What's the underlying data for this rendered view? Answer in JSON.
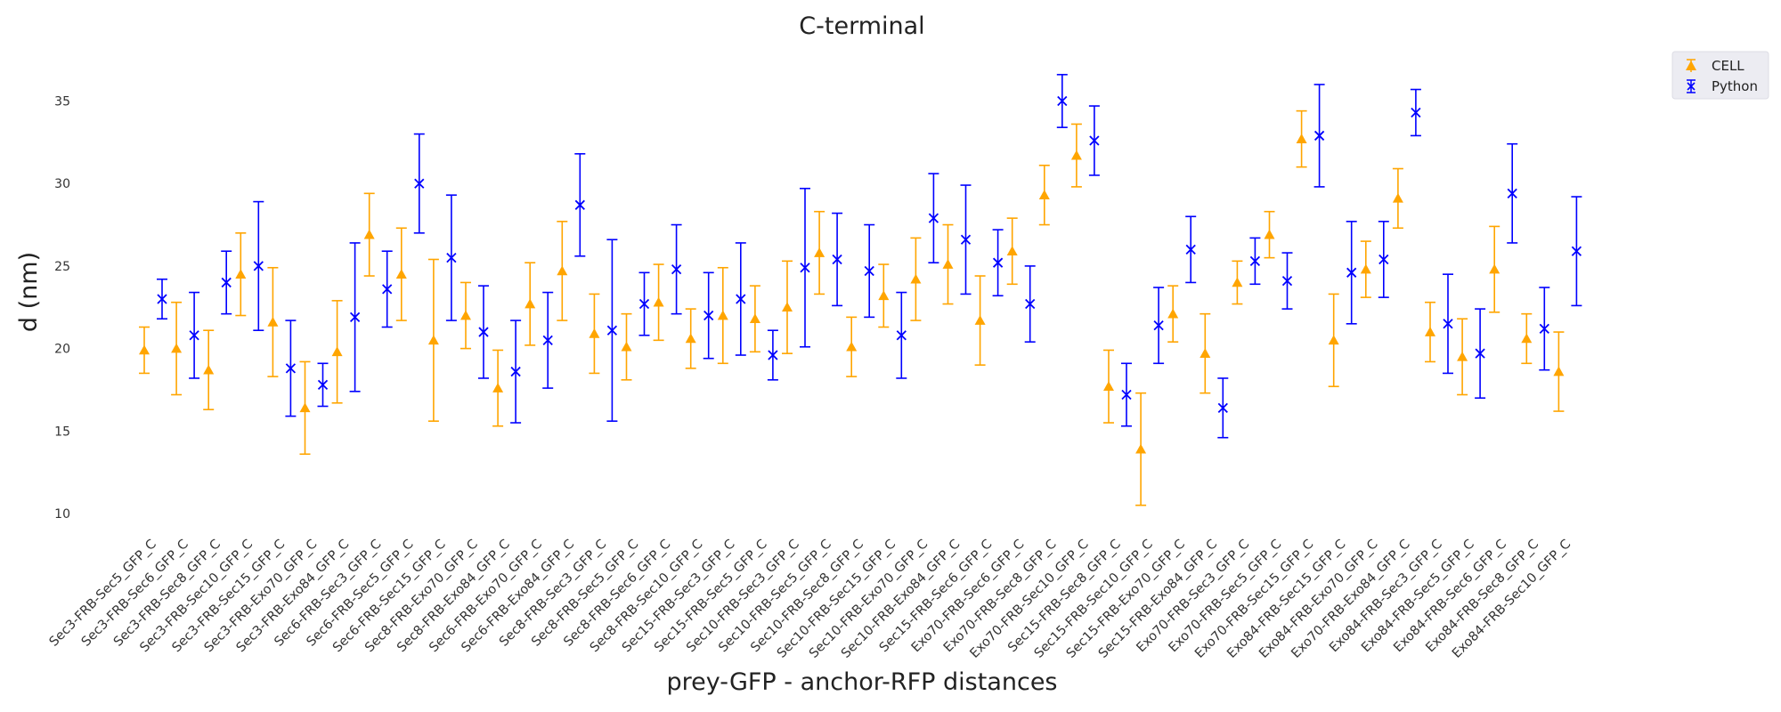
{
  "chart_data": {
    "type": "scatter",
    "title": "C-terminal",
    "xlabel": "prey-GFP - anchor-RFP distances",
    "ylabel": "d (nm)",
    "ylim": [
      9,
      38
    ],
    "yticks": [
      10,
      15,
      20,
      25,
      30,
      35
    ],
    "grid": false,
    "legend_position": "top-right",
    "colors": {
      "cell": "#FFA500",
      "python": "#0000FF"
    },
    "categories": [
      "Sec3-FRB-Sec5_GFP_C",
      "Sec3-FRB-Sec6_GFP_C",
      "Sec3-FRB-Sec8_GFP_C",
      "Sec3-FRB-Sec10_GFP_C",
      "Sec3-FRB-Sec15_GFP_C",
      "Sec3-FRB-Exo70_GFP_C",
      "Sec3-FRB-Exo84_GFP_C",
      "Sec6-FRB-Sec3_GFP_C",
      "Sec6-FRB-Sec5_GFP_C",
      "Sec6-FRB-Sec15_GFP_C",
      "Sec8-FRB-Exo70_GFP_C",
      "Sec8-FRB-Exo84_GFP_C",
      "Sec6-FRB-Exo70_GFP_C",
      "Sec6-FRB-Exo84_GFP_C",
      "Sec8-FRB-Sec3_GFP_C",
      "Sec8-FRB-Sec5_GFP_C",
      "Sec8-FRB-Sec6_GFP_C",
      "Sec8-FRB-Sec10_GFP_C",
      "Sec15-FRB-Sec3_GFP_C",
      "Sec15-FRB-Sec5_GFP_C",
      "Sec10-FRB-Sec3_GFP_C",
      "Sec10-FRB-Sec5_GFP_C",
      "Sec10-FRB-Sec8_GFP_C",
      "Sec10-FRB-Sec15_GFP_C",
      "Sec10-FRB-Exo70_GFP_C",
      "Sec10-FRB-Exo84_GFP_C",
      "Sec15-FRB-Sec6_GFP_C",
      "Exo70-FRB-Sec6_GFP_C",
      "Exo70-FRB-Sec8_GFP_C",
      "Exo70-FRB-Sec10_GFP_C",
      "Sec15-FRB-Sec8_GFP_C",
      "Sec15-FRB-Sec10_GFP_C",
      "Sec15-FRB-Exo70_GFP_C",
      "Sec15-FRB-Exo84_GFP_C",
      "Exo70-FRB-Sec3_GFP_C",
      "Exo70-FRB-Sec5_GFP_C",
      "Exo70-FRB-Sec15_GFP_C",
      "Exo84-FRB-Sec15_GFP_C",
      "Exo84-FRB-Exo70_GFP_C",
      "Exo70-FRB-Exo84_GFP_C",
      "Exo84-FRB-Sec3_GFP_C",
      "Exo84-FRB-Sec5_GFP_C",
      "Exo84-FRB-Sec6_GFP_C",
      "Exo84-FRB-Sec8_GFP_C",
      "Exo84-FRB-Sec10_GFP_C"
    ],
    "series": [
      {
        "name": "CELL",
        "marker": "triangle",
        "values": [
          19.9,
          20.0,
          18.7,
          24.5,
          21.6,
          16.4,
          19.8,
          26.9,
          24.5,
          20.5,
          22.0,
          17.6,
          22.7,
          24.7,
          20.9,
          20.1,
          22.8,
          20.6,
          22.0,
          21.8,
          22.5,
          25.8,
          20.1,
          23.2,
          24.2,
          25.1,
          21.7,
          25.9,
          29.3,
          31.7,
          17.7,
          13.9,
          22.1,
          19.7,
          24.0,
          26.9,
          32.7,
          20.5,
          24.8,
          29.1,
          21.0,
          19.5,
          24.8,
          20.6,
          18.6
        ],
        "errors": [
          1.4,
          2.8,
          2.4,
          2.5,
          3.3,
          2.8,
          3.1,
          2.5,
          2.8,
          4.9,
          2.0,
          2.3,
          2.5,
          3.0,
          2.4,
          2.0,
          2.3,
          1.8,
          2.9,
          2.0,
          2.8,
          2.5,
          1.8,
          1.9,
          2.5,
          2.4,
          2.7,
          2.0,
          1.8,
          1.9,
          2.2,
          3.4,
          1.7,
          2.4,
          1.3,
          1.4,
          1.7,
          2.8,
          1.7,
          1.8,
          1.8,
          2.3,
          2.6,
          1.5,
          2.4
        ]
      },
      {
        "name": "Python",
        "marker": "x",
        "values": [
          23.0,
          20.8,
          24.0,
          25.0,
          18.8,
          17.8,
          21.9,
          23.6,
          30.0,
          25.5,
          21.0,
          18.6,
          20.5,
          28.7,
          21.1,
          22.7,
          24.8,
          22.0,
          23.0,
          19.6,
          24.9,
          25.4,
          24.7,
          20.8,
          27.9,
          26.6,
          25.2,
          22.7,
          35.0,
          32.6,
          17.2,
          21.4,
          26.0,
          16.4,
          25.3,
          24.1,
          32.9,
          24.6,
          25.4,
          34.3,
          21.5,
          19.7,
          29.4,
          21.2,
          25.9
        ],
        "errors": [
          1.2,
          2.6,
          1.9,
          3.9,
          2.9,
          1.3,
          4.5,
          2.3,
          3.0,
          3.8,
          2.8,
          3.1,
          2.9,
          3.1,
          5.5,
          1.9,
          2.7,
          2.6,
          3.4,
          1.5,
          4.8,
          2.8,
          2.8,
          2.6,
          2.7,
          3.3,
          2.0,
          2.3,
          1.6,
          2.1,
          1.9,
          2.3,
          2.0,
          1.8,
          1.4,
          1.7,
          3.1,
          3.1,
          2.3,
          1.4,
          3.0,
          2.7,
          3.0,
          2.5,
          3.3
        ]
      }
    ]
  }
}
